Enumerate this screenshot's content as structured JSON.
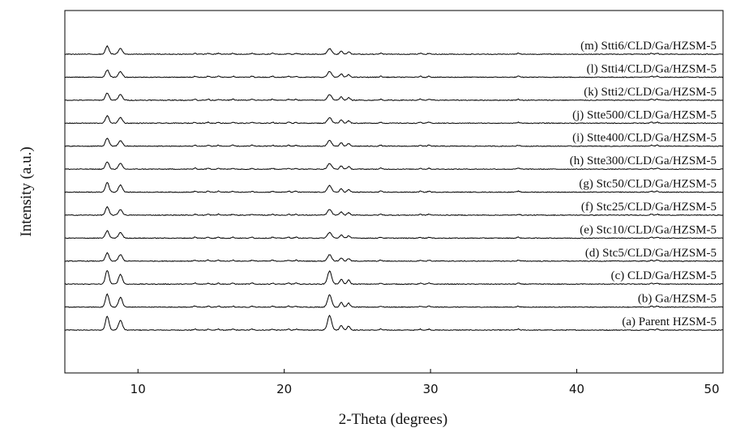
{
  "chart_data": {
    "type": "line",
    "title": "",
    "xlabel": "2-Theta (degrees)",
    "ylabel": "Intensity (a.u.)",
    "xlim": [
      5,
      50
    ],
    "x_ticks": [
      "10",
      "20",
      "30",
      "40",
      "50"
    ],
    "y_ticks": [],
    "grid": false,
    "legend": "inline labels at right end of each trace",
    "peaks_2theta": [
      7.9,
      8.8,
      23.1,
      23.9,
      24.4
    ],
    "series": [
      {
        "name": "(a) Parent HZSM-5",
        "peak_heights": [
          17,
          12,
          18,
          6,
          5
        ]
      },
      {
        "name": "(b) Ga/HZSM-5",
        "peak_heights": [
          16,
          12,
          15,
          6,
          5
        ]
      },
      {
        "name": "(c) CLD/Ga/HZSM-5",
        "peak_heights": [
          17,
          12,
          16,
          6,
          5
        ]
      },
      {
        "name": "(d) Stc5/CLD/Ga/HZSM-5",
        "peak_heights": [
          10,
          8,
          8,
          4,
          3
        ]
      },
      {
        "name": "(e) Stc10/CLD/Ga/HZSM-5",
        "peak_heights": [
          9,
          7,
          7,
          4,
          3
        ]
      },
      {
        "name": "(f) Stc25/CLD/Ga/HZSM-5",
        "peak_heights": [
          10,
          7,
          7,
          4,
          3
        ]
      },
      {
        "name": "(g) Stc50/CLD/Ga/HZSM-5",
        "peak_heights": [
          12,
          9,
          8,
          4,
          3
        ]
      },
      {
        "name": "(h) Stte300/CLD/Ga/HZSM-5",
        "peak_heights": [
          9,
          7,
          7,
          4,
          3
        ]
      },
      {
        "name": "(i) Stte400/CLD/Ga/HZSM-5",
        "peak_heights": [
          10,
          7,
          7,
          4,
          3
        ]
      },
      {
        "name": "(j) Stte500/CLD/Ga/HZSM-5",
        "peak_heights": [
          9,
          7,
          7,
          4,
          3
        ]
      },
      {
        "name": "(k) Stti2/CLD/Ga/HZSM-5",
        "peak_heights": [
          9,
          7,
          7,
          4,
          3
        ]
      },
      {
        "name": "(l) Stti4/CLD/Ga/HZSM-5",
        "peak_heights": [
          9,
          7,
          7,
          4,
          3
        ]
      },
      {
        "name": "(m) Stti6/CLD/Ga/HZSM-5",
        "peak_heights": [
          10,
          7,
          7,
          4,
          3
        ]
      }
    ]
  }
}
